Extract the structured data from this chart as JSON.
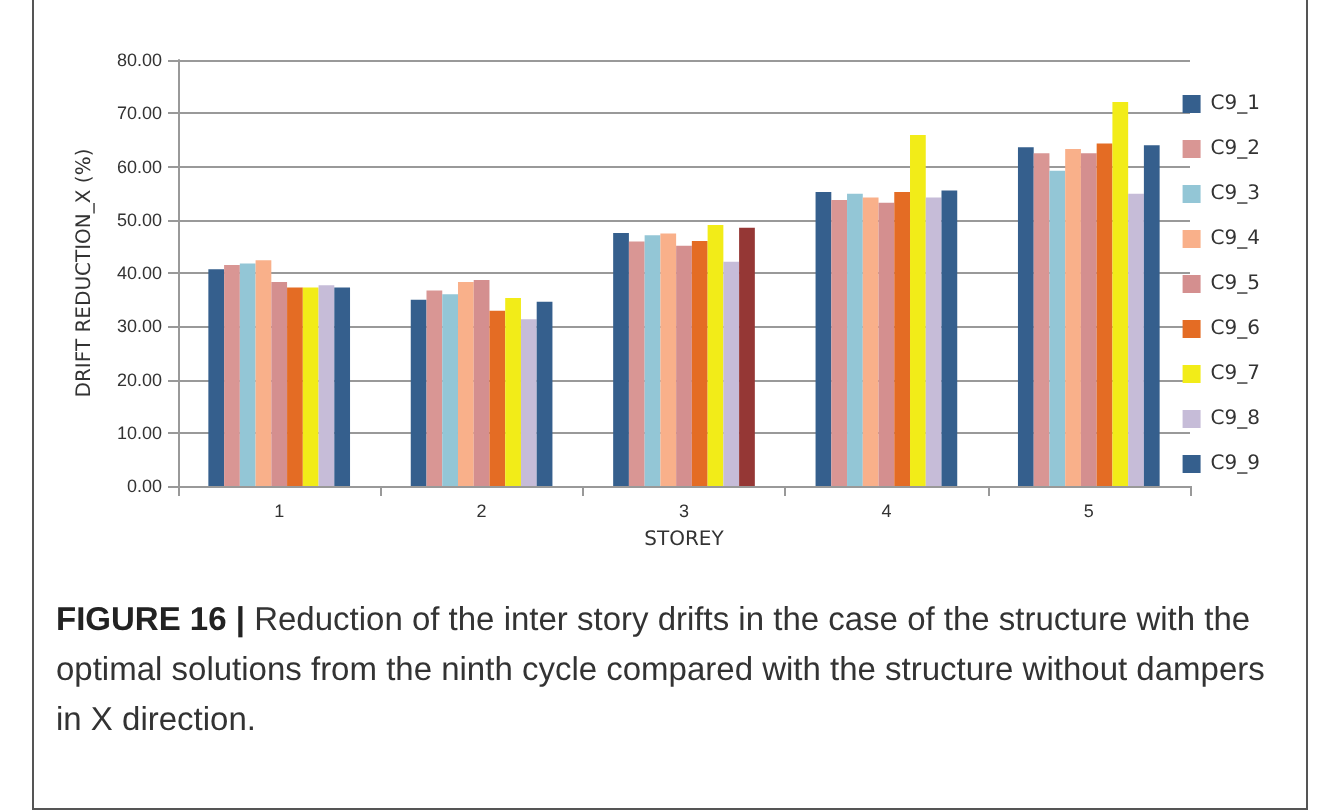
{
  "chart_data": {
    "type": "bar",
    "xlabel": "STOREY",
    "ylabel": "DRIFT REDUCTION_X (%)",
    "categories": [
      "1",
      "2",
      "3",
      "4",
      "5"
    ],
    "series": [
      {
        "name": "C9_1",
        "color": "#355f8d",
        "values": [
          40.7,
          35.0,
          47.5,
          55.2,
          63.6
        ]
      },
      {
        "name": "C9_2",
        "color": "#d99694",
        "values": [
          41.5,
          36.7,
          45.9,
          53.7,
          62.5
        ]
      },
      {
        "name": "C9_3",
        "color": "#93c6d6",
        "values": [
          41.8,
          36.0,
          47.1,
          54.9,
          59.2
        ]
      },
      {
        "name": "C9_4",
        "color": "#f9b08a",
        "values": [
          42.4,
          38.3,
          47.4,
          54.2,
          63.3
        ]
      },
      {
        "name": "C9_5",
        "color": "#d48f8f",
        "values": [
          38.3,
          38.7,
          45.1,
          53.2,
          62.5
        ]
      },
      {
        "name": "C9_6",
        "color": "#e46c24",
        "values": [
          37.3,
          32.9,
          46.0,
          55.2,
          64.3
        ]
      },
      {
        "name": "C9_7",
        "color": "#f2ec18",
        "values": [
          37.3,
          35.3,
          49.0,
          65.9,
          72.1
        ]
      },
      {
        "name": "C9_8",
        "color": "#c6bcd8",
        "values": [
          37.7,
          31.3,
          42.1,
          54.2,
          54.9
        ]
      },
      {
        "name": "C9_9",
        "color": "#355f8d",
        "colors": [
          "#355f8d",
          "#355f8d",
          "#953735",
          "#355f8d",
          "#355f8d"
        ],
        "values": [
          37.3,
          34.6,
          48.5,
          55.5,
          64.0
        ]
      }
    ],
    "ylim": [
      0,
      80
    ],
    "yticks": [
      {
        "value": 0,
        "label": "0.00"
      },
      {
        "value": 10,
        "label": "10.00"
      },
      {
        "value": 20,
        "label": "20.00"
      },
      {
        "value": 30,
        "label": "30.00"
      },
      {
        "value": 40,
        "label": "40.00"
      },
      {
        "value": 50,
        "label": "50.00"
      },
      {
        "value": 60,
        "label": "60.00"
      },
      {
        "value": 70,
        "label": "70.00"
      },
      {
        "value": 80,
        "label": "80.00"
      }
    ],
    "grid": "y",
    "legend": "right",
    "annotations": [
      "FIGURE 16 | Reduction of the inter story drifts in the case of the structure with the optimal solutions from the ninth cycle compared with the structure without dampers in X direction."
    ]
  }
}
